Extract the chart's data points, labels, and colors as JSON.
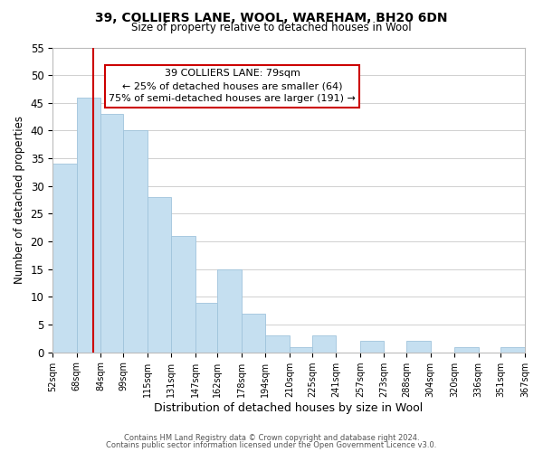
{
  "title": "39, COLLIERS LANE, WOOL, WAREHAM, BH20 6DN",
  "subtitle": "Size of property relative to detached houses in Wool",
  "xlabel": "Distribution of detached houses by size in Wool",
  "ylabel": "Number of detached properties",
  "bin_edges": [
    52,
    68,
    84,
    99,
    115,
    131,
    147,
    162,
    178,
    194,
    210,
    225,
    241,
    257,
    273,
    288,
    304,
    320,
    336,
    351,
    367
  ],
  "bin_labels": [
    "52sqm",
    "68sqm",
    "84sqm",
    "99sqm",
    "115sqm",
    "131sqm",
    "147sqm",
    "162sqm",
    "178sqm",
    "194sqm",
    "210sqm",
    "225sqm",
    "241sqm",
    "257sqm",
    "273sqm",
    "288sqm",
    "304sqm",
    "320sqm",
    "336sqm",
    "351sqm",
    "367sqm"
  ],
  "counts": [
    34,
    46,
    43,
    40,
    28,
    21,
    9,
    15,
    7,
    3,
    1,
    3,
    0,
    2,
    0,
    2,
    0,
    1,
    0,
    1
  ],
  "bar_color": "#c5dff0",
  "bar_edge_color": "#a0c4dc",
  "property_line_x": 79,
  "property_line_color": "#cc0000",
  "annotation_title": "39 COLLIERS LANE: 79sqm",
  "annotation_line1": "← 25% of detached houses are smaller (64)",
  "annotation_line2": "75% of semi-detached houses are larger (191) →",
  "annotation_box_color": "#ffffff",
  "annotation_box_edge": "#cc0000",
  "ylim": [
    0,
    55
  ],
  "yticks": [
    0,
    5,
    10,
    15,
    20,
    25,
    30,
    35,
    40,
    45,
    50,
    55
  ],
  "footer_line1": "Contains HM Land Registry data © Crown copyright and database right 2024.",
  "footer_line2": "Contains public sector information licensed under the Open Government Licence v3.0.",
  "bg_color": "#ffffff",
  "grid_color": "#d0d0d0"
}
